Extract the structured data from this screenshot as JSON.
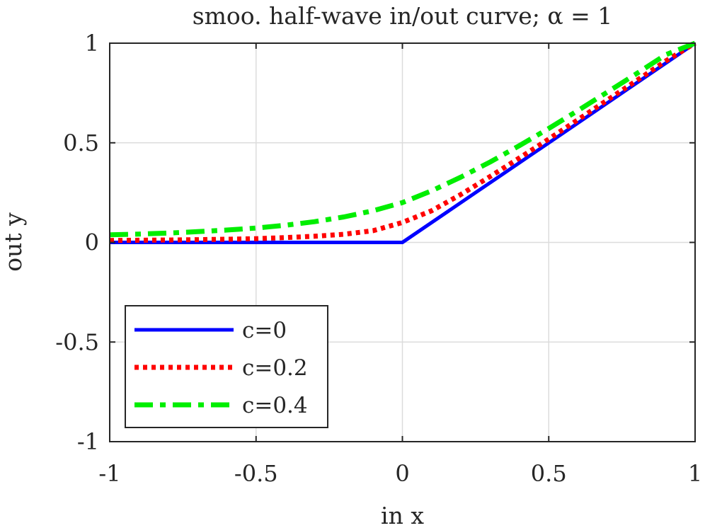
{
  "chart_data": {
    "type": "line",
    "title": "smoo. half-wave in/out curve; α = 1",
    "xlabel": "in x",
    "ylabel": "out y",
    "xlim": [
      -1,
      1
    ],
    "ylim": [
      -1,
      1
    ],
    "xticks": [
      -1,
      -0.5,
      0,
      0.5,
      1
    ],
    "yticks": [
      -1,
      -0.5,
      0,
      0.5,
      1
    ],
    "xtick_labels": [
      "-1",
      "-0.5",
      "0",
      "0.5",
      "1"
    ],
    "ytick_labels": [
      "-1",
      "-0.5",
      "0",
      "0.5",
      "1"
    ],
    "grid": true,
    "legend_position": "bottom-left",
    "series": [
      {
        "name": "c=0",
        "color": "#0000ff",
        "style": "solid",
        "x": [
          -1,
          -0.75,
          -0.5,
          -0.25,
          0,
          0.25,
          0.5,
          0.75,
          1
        ],
        "y": [
          0,
          0,
          0,
          0,
          0,
          0.25,
          0.5,
          0.75,
          1
        ]
      },
      {
        "name": "c=0.2",
        "color": "#ff0000",
        "style": "dotted",
        "x": [
          -1,
          -0.9,
          -0.8,
          -0.7,
          -0.6,
          -0.5,
          -0.4,
          -0.3,
          -0.2,
          -0.1,
          0,
          0.1,
          0.2,
          0.3,
          0.4,
          0.5,
          0.6,
          0.7,
          0.8,
          0.9,
          1
        ],
        "y": [
          0.01,
          0.011,
          0.012,
          0.014,
          0.016,
          0.019,
          0.024,
          0.031,
          0.041,
          0.059,
          0.1,
          0.159,
          0.241,
          0.331,
          0.424,
          0.519,
          0.616,
          0.714,
          0.812,
          0.911,
          1.0
        ]
      },
      {
        "name": "c=0.4",
        "color": "#00ee00",
        "style": "dashdot",
        "x": [
          -1,
          -0.9,
          -0.8,
          -0.7,
          -0.6,
          -0.5,
          -0.4,
          -0.3,
          -0.2,
          -0.1,
          0,
          0.1,
          0.2,
          0.3,
          0.4,
          0.5,
          0.6,
          0.7,
          0.8,
          0.9,
          1
        ],
        "y": [
          0.038,
          0.042,
          0.047,
          0.054,
          0.062,
          0.072,
          0.086,
          0.104,
          0.128,
          0.159,
          0.2,
          0.259,
          0.328,
          0.404,
          0.486,
          0.572,
          0.662,
          0.754,
          0.847,
          0.942,
          1.0
        ]
      }
    ]
  }
}
